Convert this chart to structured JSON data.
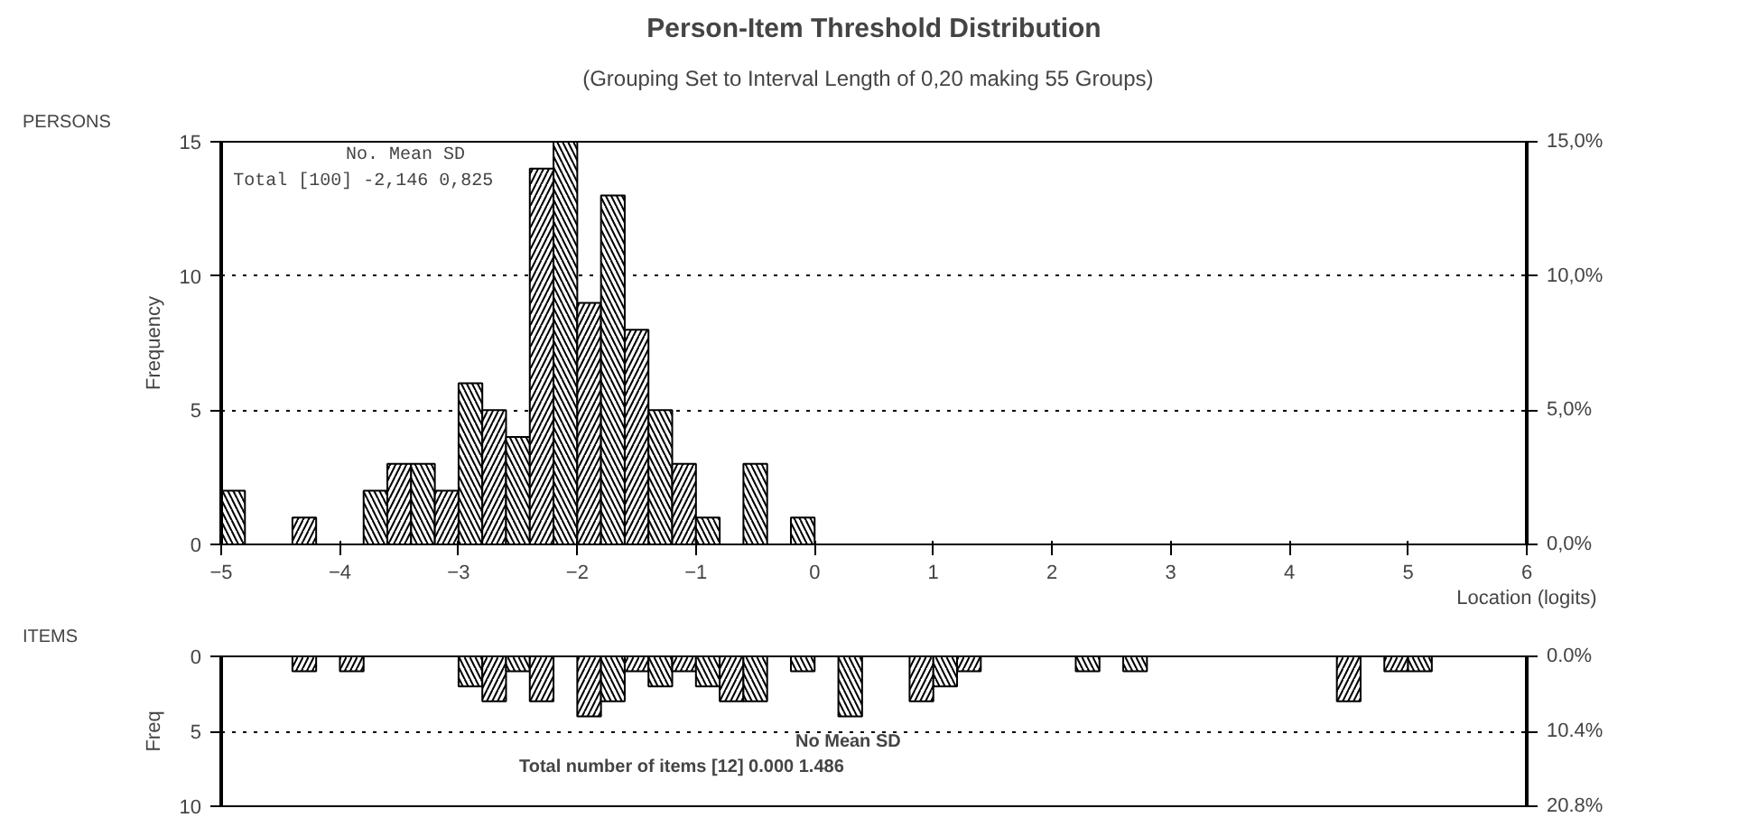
{
  "chart_data": [
    {
      "type": "histogram",
      "title": "Person-Item Threshold Distribution",
      "subtitle": "(Grouping Set to Interval Length of 0,20  making 55  Groups)",
      "xlabel": "Location (logits)",
      "ylabel": "Frequency",
      "annotations": [
        "PERSONS",
        "No.     Mean     SD",
        "Total    [100] -2,146  0,825"
      ],
      "bins": [
        -5,
        -4.8,
        -4.6,
        -4.4,
        -4.2,
        -4,
        -3.8,
        -3.6,
        -3.4,
        -3.2,
        -3,
        -2.8,
        -2.6,
        -2.4,
        -2.2,
        -2,
        -1.8,
        -1.6,
        -1.4,
        -1.2,
        -1,
        -0.8,
        -0.6,
        -0.4,
        -0.2,
        0,
        0.2,
        0.4,
        0.6,
        0.8,
        1,
        1.2,
        1.4,
        1.6,
        1.8,
        2,
        2.2,
        2.4,
        2.6,
        2.8,
        3,
        3.2,
        3.4,
        3.6,
        3.8,
        4,
        4.2,
        4.4,
        4.6,
        4.8,
        5,
        5.2,
        5.4,
        5.6,
        5.8,
        6
      ],
      "values": [
        2,
        0,
        0,
        1,
        0,
        0,
        2,
        3,
        3,
        2,
        6,
        5,
        4,
        14,
        15,
        9,
        13,
        8,
        5,
        3,
        1,
        0,
        3,
        0,
        1,
        0,
        0,
        0,
        0,
        0,
        0,
        0,
        0,
        0,
        0,
        0,
        0,
        0,
        0,
        0,
        0,
        0,
        0,
        0,
        0,
        0,
        0,
        0,
        0,
        0,
        0,
        0,
        0,
        0,
        0
      ],
      "color": "#000000",
      "xlim": [
        -5,
        6
      ],
      "xticks": [
        -5,
        -4,
        -3,
        -2,
        -1,
        0,
        1,
        2,
        3,
        4,
        5,
        6
      ],
      "ylim": [
        0,
        15
      ],
      "yticks": [
        0,
        5,
        10,
        15
      ],
      "y2lim": [
        0,
        15
      ],
      "y2ticks": [
        {
          "value": 0,
          "label": "0,0%"
        },
        {
          "value": 5,
          "label": "5,0%"
        },
        {
          "value": 10,
          "label": "10,0%"
        },
        {
          "value": 15,
          "label": "15,0%"
        }
      ],
      "grid": "y",
      "line_style": "dotted"
    },
    {
      "type": "histogram",
      "ylabel": "Freq",
      "annotations": [
        "ITEMS",
        "No Mean  SD",
        "Total number of items [12] 0.000  1.486"
      ],
      "bins": [
        -5,
        -4.8,
        -4.6,
        -4.4,
        -4.2,
        -4,
        -3.8,
        -3.6,
        -3.4,
        -3.2,
        -3,
        -2.8,
        -2.6,
        -2.4,
        -2.2,
        -2,
        -1.8,
        -1.6,
        -1.4,
        -1.2,
        -1,
        -0.8,
        -0.6,
        -0.4,
        -0.2,
        0,
        0.2,
        0.4,
        0.6,
        0.8,
        1,
        1.2,
        1.4,
        1.6,
        1.8,
        2,
        2.2,
        2.4,
        2.6,
        2.8,
        3,
        3.2,
        3.4,
        3.6,
        3.8,
        4,
        4.2,
        4.4,
        4.6,
        4.8,
        5,
        5.2,
        5.4,
        5.6,
        5.8,
        6
      ],
      "values": [
        0,
        0,
        0,
        1,
        0,
        1,
        0,
        0,
        0,
        0,
        2,
        3,
        1,
        3,
        0,
        4,
        3,
        1,
        2,
        1,
        2,
        3,
        3,
        0,
        1,
        0,
        4,
        0,
        0,
        3,
        2,
        1,
        0,
        0,
        0,
        0,
        1,
        0,
        1,
        0,
        0,
        0,
        0,
        0,
        0,
        0,
        0,
        3,
        0,
        1,
        1,
        0,
        0,
        0,
        0
      ],
      "color": "#000000",
      "xlim": [
        -5,
        6
      ],
      "ylim": [
        10,
        0
      ],
      "yticks": [
        0,
        5,
        10
      ],
      "y2lim": [
        20.8,
        0
      ],
      "y2ticks": [
        {
          "value": 0,
          "label": "0.0%"
        },
        {
          "value": 10.4,
          "label": "10.4%"
        },
        {
          "value": 20.8,
          "label": "20.8%"
        }
      ],
      "grid": "y",
      "line_style": "dotted",
      "tick_labels": "y"
    }
  ]
}
